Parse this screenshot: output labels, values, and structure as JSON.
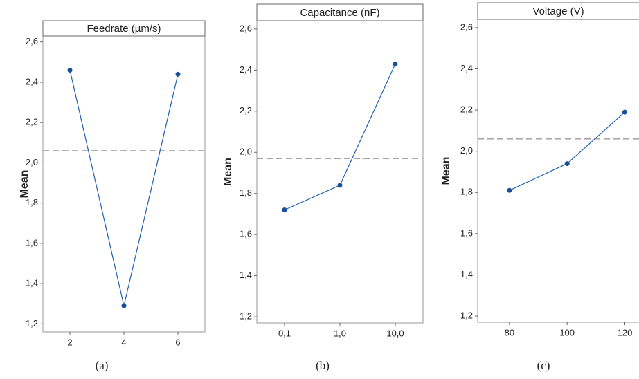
{
  "chart_data": [
    {
      "type": "line",
      "title": "Feedrate (µm/s)",
      "y_label": "Mean",
      "caption": "(a)",
      "categories": [
        "2",
        "4",
        "6"
      ],
      "series": [
        {
          "color": "#1f5fae",
          "values": [
            2.46,
            1.29,
            2.44
          ]
        }
      ],
      "reference_line": 2.06,
      "ylim": [
        1.16,
        2.63
      ],
      "yticks": [
        {
          "value": 1.2,
          "label": "1,2"
        },
        {
          "value": 1.4,
          "label": "1,4"
        },
        {
          "value": 1.6,
          "label": "1,6"
        },
        {
          "value": 1.8,
          "label": "1,8"
        },
        {
          "value": 2.0,
          "label": "2,0"
        },
        {
          "value": 2.2,
          "label": "2,2"
        },
        {
          "value": 2.4,
          "label": "2,4"
        },
        {
          "value": 2.6,
          "label": "2,6"
        }
      ]
    },
    {
      "type": "line",
      "title": "Capacitance (nF)",
      "y_label": "Mean",
      "caption": "(b)",
      "categories": [
        "0,1",
        "1,0",
        "10,0"
      ],
      "series": [
        {
          "color": "#1f5fae",
          "values": [
            1.72,
            1.84,
            2.43
          ]
        }
      ],
      "reference_line": 1.97,
      "ylim": [
        1.17,
        2.64
      ],
      "yticks": [
        {
          "value": 1.2,
          "label": "1,2"
        },
        {
          "value": 1.4,
          "label": "1,4"
        },
        {
          "value": 1.6,
          "label": "1,6"
        },
        {
          "value": 1.8,
          "label": "1,8"
        },
        {
          "value": 2.0,
          "label": "2,0"
        },
        {
          "value": 2.2,
          "label": "2,2"
        },
        {
          "value": 2.4,
          "label": "2,4"
        },
        {
          "value": 2.6,
          "label": "2,6"
        }
      ]
    },
    {
      "type": "line",
      "title": "Voltage (V)",
      "y_label": "Mean",
      "caption": "(c)",
      "x": [
        80,
        100,
        120
      ],
      "series": [
        {
          "color": "#1f5fae",
          "values": [
            1.81,
            1.94,
            2.19
          ]
        }
      ],
      "reference_line": 2.06,
      "xlim": [
        69,
        129
      ],
      "xticks": [
        80,
        100,
        120
      ],
      "ylim": [
        1.17,
        2.64
      ],
      "yticks": [
        {
          "value": 1.2,
          "label": "1,2"
        },
        {
          "value": 1.4,
          "label": "1,4"
        },
        {
          "value": 1.6,
          "label": "1,6"
        },
        {
          "value": 1.8,
          "label": "1,8"
        },
        {
          "value": 2.0,
          "label": "2,0"
        },
        {
          "value": 2.2,
          "label": "2,2"
        },
        {
          "value": 2.4,
          "label": "2,4"
        },
        {
          "value": 2.6,
          "label": "2,6"
        }
      ]
    }
  ]
}
